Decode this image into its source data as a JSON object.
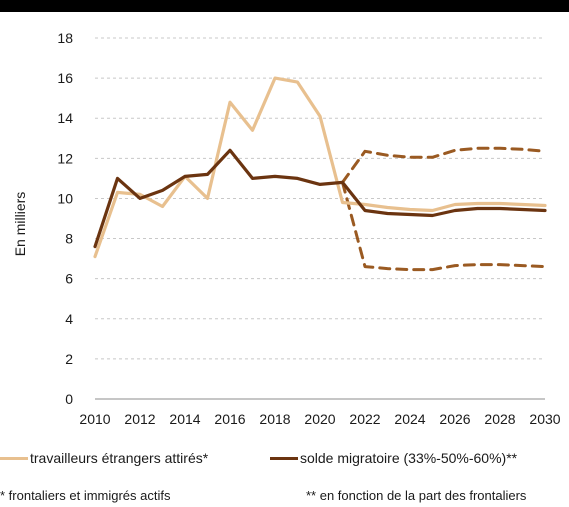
{
  "chart_data": {
    "type": "line",
    "title": "",
    "xlabel": "",
    "ylabel": "En milliers",
    "xlim": [
      2010,
      2030
    ],
    "ylim": [
      0,
      18
    ],
    "xticks": [
      2010,
      2012,
      2014,
      2016,
      2018,
      2020,
      2022,
      2024,
      2026,
      2028,
      2030
    ],
    "yticks": [
      0,
      2,
      4,
      6,
      8,
      10,
      12,
      14,
      16,
      18
    ],
    "grid": "horizontal dashed",
    "legend_position": "bottom",
    "series": [
      {
        "name": "travailleurs étrangers attirés*",
        "color": "#e8c08f",
        "style": "solid",
        "x": [
          2010,
          2011,
          2012,
          2013,
          2014,
          2015,
          2016,
          2017,
          2018,
          2019,
          2020,
          2021,
          2022,
          2023,
          2024,
          2025,
          2026,
          2027,
          2028,
          2029,
          2030
        ],
        "y": [
          7.1,
          10.3,
          10.2,
          9.6,
          11.1,
          10.0,
          14.8,
          13.4,
          16.0,
          15.8,
          14.1,
          9.8,
          9.7,
          9.55,
          9.45,
          9.4,
          9.7,
          9.75,
          9.75,
          9.7,
          9.65
        ]
      },
      {
        "name": "solde migratoire (33%-50%-60%)**",
        "color": "#6b3410",
        "style": "solid",
        "x": [
          2010,
          2011,
          2012,
          2013,
          2014,
          2015,
          2016,
          2017,
          2018,
          2019,
          2020,
          2021,
          2022,
          2023,
          2024,
          2025,
          2026,
          2027,
          2028,
          2029,
          2030
        ],
        "y": [
          7.6,
          11.0,
          10.0,
          10.4,
          11.1,
          11.2,
          12.4,
          11.0,
          11.1,
          11.0,
          10.7,
          10.8,
          9.4,
          9.25,
          9.2,
          9.15,
          9.4,
          9.5,
          9.5,
          9.45,
          9.4
        ]
      },
      {
        "color": "#9a5a22",
        "style": "dashed",
        "x": [
          2021,
          2022,
          2023,
          2024,
          2025,
          2026,
          2027,
          2028,
          2029,
          2030
        ],
        "y": [
          10.8,
          12.35,
          12.15,
          12.05,
          12.05,
          12.4,
          12.5,
          12.5,
          12.45,
          12.35
        ]
      },
      {
        "color": "#9a5a22",
        "style": "dashed",
        "x": [
          2021,
          2022,
          2023,
          2024,
          2025,
          2026,
          2027,
          2028,
          2029,
          2030
        ],
        "y": [
          10.8,
          6.6,
          6.5,
          6.45,
          6.45,
          6.65,
          6.7,
          6.7,
          6.65,
          6.6
        ]
      }
    ],
    "footnotes": [
      "* frontaliers et immigrés actifs",
      "** en fonction de la part des frontaliers"
    ]
  }
}
